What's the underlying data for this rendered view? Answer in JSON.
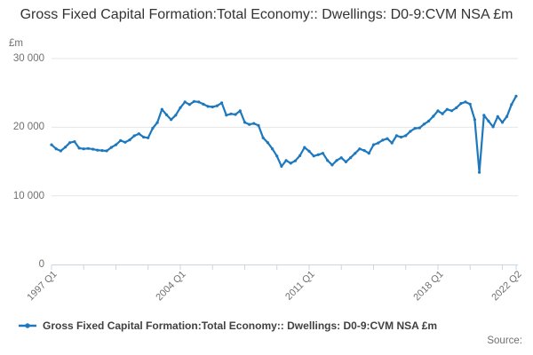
{
  "header": {
    "title": "Gross Fixed Capital Formation:Total Economy:: Dwellings: D0-9:CVM NSA £m"
  },
  "footer": {
    "source_label": "Source:"
  },
  "legend": {
    "marker_icon": "line-dot-marker",
    "label": "Gross Fixed Capital Formation:Total Economy:: Dwellings: D0-9:CVM NSA £m"
  },
  "colors": {
    "series": "#1d78be",
    "gridline": "#e6e6e6",
    "axis": "#c9d6e3",
    "tick_text": "#707070",
    "title_text": "#333333"
  },
  "chart_data": {
    "type": "line",
    "title": "Gross Fixed Capital Formation:Total Economy:: Dwellings: D0-9:CVM NSA £m",
    "xlabel": "",
    "ylabel": "£m",
    "ylim": [
      0,
      30000
    ],
    "grid": "horizontal",
    "legend_position": "bottom",
    "marker": "dot",
    "y_ticks": [
      {
        "value": 30000,
        "label": "30 000"
      },
      {
        "value": 20000,
        "label": "20 000"
      },
      {
        "value": 10000,
        "label": "10 000"
      },
      {
        "value": 0,
        "label": "0"
      }
    ],
    "x_tick_indices": [
      0,
      7,
      14,
      21,
      28,
      35,
      42,
      49,
      56,
      63,
      70,
      77,
      84,
      91,
      98,
      101
    ],
    "x_tick_labels": [
      {
        "index": 0,
        "label": "1997 Q1"
      },
      {
        "index": 28,
        "label": "2004 Q1"
      },
      {
        "index": 56,
        "label": "2011 Q1"
      },
      {
        "index": 84,
        "label": "2018 Q1"
      },
      {
        "index": 101,
        "label": "2022 Q2"
      }
    ],
    "categories": [
      "1997 Q1",
      "1997 Q2",
      "1997 Q3",
      "1997 Q4",
      "1998 Q1",
      "1998 Q2",
      "1998 Q3",
      "1998 Q4",
      "1999 Q1",
      "1999 Q2",
      "1999 Q3",
      "1999 Q4",
      "2000 Q1",
      "2000 Q2",
      "2000 Q3",
      "2000 Q4",
      "2001 Q1",
      "2001 Q2",
      "2001 Q3",
      "2001 Q4",
      "2002 Q1",
      "2002 Q2",
      "2002 Q3",
      "2002 Q4",
      "2003 Q1",
      "2003 Q2",
      "2003 Q3",
      "2003 Q4",
      "2004 Q1",
      "2004 Q2",
      "2004 Q3",
      "2004 Q4",
      "2005 Q1",
      "2005 Q2",
      "2005 Q3",
      "2005 Q4",
      "2006 Q1",
      "2006 Q2",
      "2006 Q3",
      "2006 Q4",
      "2007 Q1",
      "2007 Q2",
      "2007 Q3",
      "2007 Q4",
      "2008 Q1",
      "2008 Q2",
      "2008 Q3",
      "2008 Q4",
      "2009 Q1",
      "2009 Q2",
      "2009 Q3",
      "2009 Q4",
      "2010 Q1",
      "2010 Q2",
      "2010 Q3",
      "2010 Q4",
      "2011 Q1",
      "2011 Q2",
      "2011 Q3",
      "2011 Q4",
      "2012 Q1",
      "2012 Q2",
      "2012 Q3",
      "2012 Q4",
      "2013 Q1",
      "2013 Q2",
      "2013 Q3",
      "2013 Q4",
      "2014 Q1",
      "2014 Q2",
      "2014 Q3",
      "2014 Q4",
      "2015 Q1",
      "2015 Q2",
      "2015 Q3",
      "2015 Q4",
      "2016 Q1",
      "2016 Q2",
      "2016 Q3",
      "2016 Q4",
      "2017 Q1",
      "2017 Q2",
      "2017 Q3",
      "2017 Q4",
      "2018 Q1",
      "2018 Q2",
      "2018 Q3",
      "2018 Q4",
      "2019 Q1",
      "2019 Q2",
      "2019 Q3",
      "2019 Q4",
      "2020 Q1",
      "2020 Q2",
      "2020 Q3",
      "2020 Q4",
      "2021 Q1",
      "2021 Q2",
      "2021 Q3",
      "2021 Q4",
      "2022 Q1",
      "2022 Q2"
    ],
    "series": [
      {
        "name": "Gross Fixed Capital Formation:Total Economy:: Dwellings: D0-9:CVM NSA £m",
        "color": "#1d78be",
        "values": [
          17450,
          16850,
          16550,
          17100,
          17750,
          17900,
          16950,
          16850,
          16900,
          16800,
          16650,
          16600,
          16550,
          17050,
          17450,
          18050,
          17800,
          18150,
          18750,
          19050,
          18550,
          18450,
          19850,
          20680,
          22600,
          21800,
          21100,
          21750,
          22850,
          23680,
          23300,
          23760,
          23680,
          23350,
          23030,
          22950,
          23120,
          23550,
          21750,
          21950,
          21850,
          22400,
          20700,
          20400,
          20550,
          20250,
          18450,
          17750,
          16850,
          15800,
          14300,
          15150,
          14750,
          15100,
          15850,
          17050,
          16500,
          15800,
          16000,
          16200,
          15150,
          14500,
          15150,
          15550,
          14950,
          15550,
          16200,
          16850,
          16600,
          16200,
          17450,
          17700,
          18120,
          18330,
          17700,
          18760,
          18550,
          18760,
          19400,
          19830,
          19900,
          20450,
          20900,
          21600,
          22390,
          21960,
          22600,
          22400,
          22820,
          23460,
          23680,
          23350,
          21100,
          13420,
          21750,
          20900,
          20050,
          21550,
          20700,
          21550,
          23300,
          24530
        ]
      }
    ]
  }
}
